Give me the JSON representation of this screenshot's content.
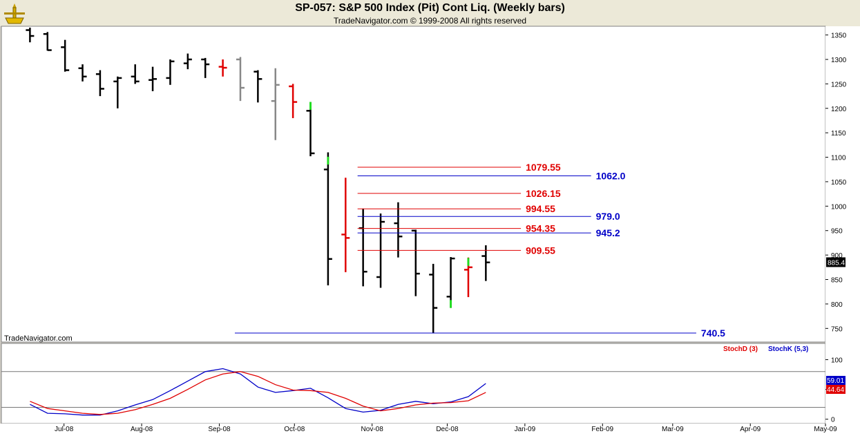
{
  "header": {
    "title": "SP-057:  S&P 500 Index (Pit) Cont Liq.  (Weekly bars)",
    "subtitle": "TradeNavigator.com © 1999-2008 All rights reserved",
    "watermark": "TradeNavigator.com"
  },
  "colors": {
    "black_bar": "#000000",
    "red": "#e00000",
    "green": "#22dd22",
    "gray": "#888888",
    "blue": "#0000c8",
    "gridline": "#777777"
  },
  "chart_data": [
    {
      "type": "ohlc",
      "ylim": [
        725,
        1365
      ],
      "yticks": [
        750,
        800,
        850,
        900,
        950,
        1000,
        1050,
        1100,
        1150,
        1200,
        1250,
        1300,
        1350
      ],
      "xlim": [
        "2008-06-06",
        "2009-05-01"
      ],
      "xticks": [
        {
          "date": "2008-07-01",
          "label": "Jul-08"
        },
        {
          "date": "2008-08-01",
          "label": "Aug-08"
        },
        {
          "date": "2008-09-01",
          "label": "Sep-08"
        },
        {
          "date": "2008-10-01",
          "label": "Oct-08"
        },
        {
          "date": "2008-11-01",
          "label": "Nov-08"
        },
        {
          "date": "2008-12-01",
          "label": "Dec-08"
        },
        {
          "date": "2009-01-01",
          "label": "Jan-09"
        },
        {
          "date": "2009-02-01",
          "label": "Feb-09"
        },
        {
          "date": "2009-03-01",
          "label": "Mar-09"
        },
        {
          "date": "2009-04-01",
          "label": "Apr-09"
        },
        {
          "date": "2009-05-01",
          "label": "May-09"
        }
      ],
      "last_price": "885.4",
      "bars": [
        {
          "date": "2008-06-13",
          "o": 1360,
          "h": 1365,
          "l": 1335,
          "c": 1348,
          "color": "black"
        },
        {
          "date": "2008-06-20",
          "o": 1352,
          "h": 1356,
          "l": 1318,
          "c": 1319,
          "color": "black"
        },
        {
          "date": "2008-06-27",
          "o": 1325,
          "h": 1340,
          "l": 1275,
          "c": 1278,
          "color": "black"
        },
        {
          "date": "2008-07-04",
          "o": 1282,
          "h": 1290,
          "l": 1255,
          "c": 1265,
          "color": "black"
        },
        {
          "date": "2008-07-11",
          "o": 1270,
          "h": 1278,
          "l": 1225,
          "c": 1240,
          "color": "black"
        },
        {
          "date": "2008-07-18",
          "o": 1255,
          "h": 1265,
          "l": 1200,
          "c": 1262,
          "color": "black"
        },
        {
          "date": "2008-07-25",
          "o": 1265,
          "h": 1290,
          "l": 1250,
          "c": 1255,
          "color": "black"
        },
        {
          "date": "2008-08-01",
          "o": 1258,
          "h": 1285,
          "l": 1235,
          "c": 1260,
          "color": "black"
        },
        {
          "date": "2008-08-08",
          "o": 1262,
          "h": 1300,
          "l": 1248,
          "c": 1296,
          "color": "black"
        },
        {
          "date": "2008-08-15",
          "o": 1292,
          "h": 1312,
          "l": 1280,
          "c": 1300,
          "color": "black"
        },
        {
          "date": "2008-08-22",
          "o": 1300,
          "h": 1303,
          "l": 1262,
          "c": 1290,
          "color": "black"
        },
        {
          "date": "2008-08-29",
          "o": 1285,
          "h": 1300,
          "l": 1265,
          "c": 1283,
          "color": "red"
        },
        {
          "date": "2008-09-05",
          "o": 1300,
          "h": 1305,
          "l": 1215,
          "c": 1242,
          "color": "gray"
        },
        {
          "date": "2008-09-12",
          "o": 1275,
          "h": 1278,
          "l": 1212,
          "c": 1260,
          "color": "black"
        },
        {
          "date": "2008-09-19",
          "o": 1215,
          "h": 1282,
          "l": 1135,
          "c": 1248,
          "color": "gray"
        },
        {
          "date": "2008-09-26",
          "o": 1245,
          "h": 1250,
          "l": 1180,
          "c": 1213,
          "color": "red"
        },
        {
          "date": "2008-10-03",
          "o": 1195,
          "h": 1213,
          "l": 1102,
          "c": 1108,
          "color": "black"
        },
        {
          "date": "2008-10-10",
          "o": 1075,
          "h": 1110,
          "l": 838,
          "c": 892,
          "color": "black"
        },
        {
          "date": "2008-10-17",
          "o": 942,
          "h": 1058,
          "l": 865,
          "c": 935,
          "color": "red"
        },
        {
          "date": "2008-10-24",
          "o": 955,
          "h": 995,
          "l": 836,
          "c": 866,
          "color": "black"
        },
        {
          "date": "2008-10-31",
          "o": 855,
          "h": 985,
          "l": 833,
          "c": 968,
          "color": "black"
        },
        {
          "date": "2008-11-07",
          "o": 965,
          "h": 1008,
          "l": 895,
          "c": 938,
          "color": "black"
        },
        {
          "date": "2008-11-14",
          "o": 950,
          "h": 952,
          "l": 816,
          "c": 862,
          "color": "black"
        },
        {
          "date": "2008-11-21",
          "o": 860,
          "h": 882,
          "l": 740,
          "c": 792,
          "color": "black"
        },
        {
          "date": "2008-11-28",
          "o": 815,
          "h": 896,
          "l": 792,
          "c": 893,
          "color": "black"
        },
        {
          "date": "2008-12-05",
          "o": 870,
          "h": 895,
          "l": 814,
          "c": 875,
          "color": "red"
        },
        {
          "date": "2008-12-12",
          "o": 898,
          "h": 920,
          "l": 847,
          "c": 885,
          "color": "black"
        }
      ],
      "green_ticks": [
        {
          "date": "2008-10-03",
          "value": 1205
        },
        {
          "date": "2008-10-10",
          "value": 1093
        },
        {
          "date": "2008-11-28",
          "value": 800
        },
        {
          "date": "2008-12-05",
          "value": 886
        }
      ],
      "levels": [
        {
          "value": 1079.55,
          "label": "1079.55",
          "color": "red",
          "from": "2008-10-24",
          "to": "2008-12-26"
        },
        {
          "value": 1062.0,
          "label": "1062.0",
          "color": "blue",
          "from": "2008-10-24",
          "to": "2009-01-23"
        },
        {
          "value": 1026.15,
          "label": "1026.15",
          "color": "red",
          "from": "2008-10-24",
          "to": "2008-12-26"
        },
        {
          "value": 994.55,
          "label": "994.55",
          "color": "red",
          "from": "2008-10-24",
          "to": "2008-12-26"
        },
        {
          "value": 979.0,
          "label": "979.0",
          "color": "blue",
          "from": "2008-10-24",
          "to": "2009-01-23"
        },
        {
          "value": 954.35,
          "label": "954.35",
          "color": "red",
          "from": "2008-10-24",
          "to": "2008-12-26"
        },
        {
          "value": 945.2,
          "label": "945.2",
          "color": "blue",
          "from": "2008-10-24",
          "to": "2009-01-23"
        },
        {
          "value": 909.55,
          "label": "909.55",
          "color": "red",
          "from": "2008-10-24",
          "to": "2008-12-26"
        },
        {
          "value": 740.5,
          "label": "740.5",
          "color": "blue",
          "from": "2008-09-05",
          "to": "2009-03-06"
        }
      ]
    },
    {
      "type": "line",
      "ylim": [
        -5,
        125
      ],
      "yticks": [
        0,
        50,
        100
      ],
      "reference_lines": [
        20,
        80
      ],
      "legend": [
        {
          "label": "StochD (3)",
          "color": "red"
        },
        {
          "label": "StochK (5,3)",
          "color": "blue"
        }
      ],
      "last_values": {
        "stochD": "44.64",
        "stochK": "59.01"
      },
      "x": [
        "2008-06-13",
        "2008-06-20",
        "2008-06-27",
        "2008-07-04",
        "2008-07-11",
        "2008-07-18",
        "2008-07-25",
        "2008-08-01",
        "2008-08-08",
        "2008-08-15",
        "2008-08-22",
        "2008-08-29",
        "2008-09-05",
        "2008-09-12",
        "2008-09-19",
        "2008-09-26",
        "2008-10-03",
        "2008-10-10",
        "2008-10-17",
        "2008-10-24",
        "2008-10-31",
        "2008-11-07",
        "2008-11-14",
        "2008-11-21",
        "2008-11-28",
        "2008-12-05",
        "2008-12-12"
      ],
      "series": [
        {
          "name": "StochK (5,3)",
          "color": "blue",
          "values": [
            25,
            10,
            9,
            7,
            7,
            14,
            24,
            33,
            48,
            64,
            80,
            85,
            76,
            54,
            45,
            48,
            52,
            36,
            18,
            12,
            15,
            25,
            30,
            26,
            29,
            38,
            60
          ]
        },
        {
          "name": "StochD (3)",
          "color": "red",
          "values": [
            30,
            18,
            14,
            10,
            8,
            10,
            16,
            25,
            35,
            50,
            66,
            76,
            80,
            72,
            58,
            49,
            48,
            45,
            35,
            22,
            14,
            18,
            24,
            27,
            28,
            31,
            45
          ]
        }
      ]
    }
  ]
}
